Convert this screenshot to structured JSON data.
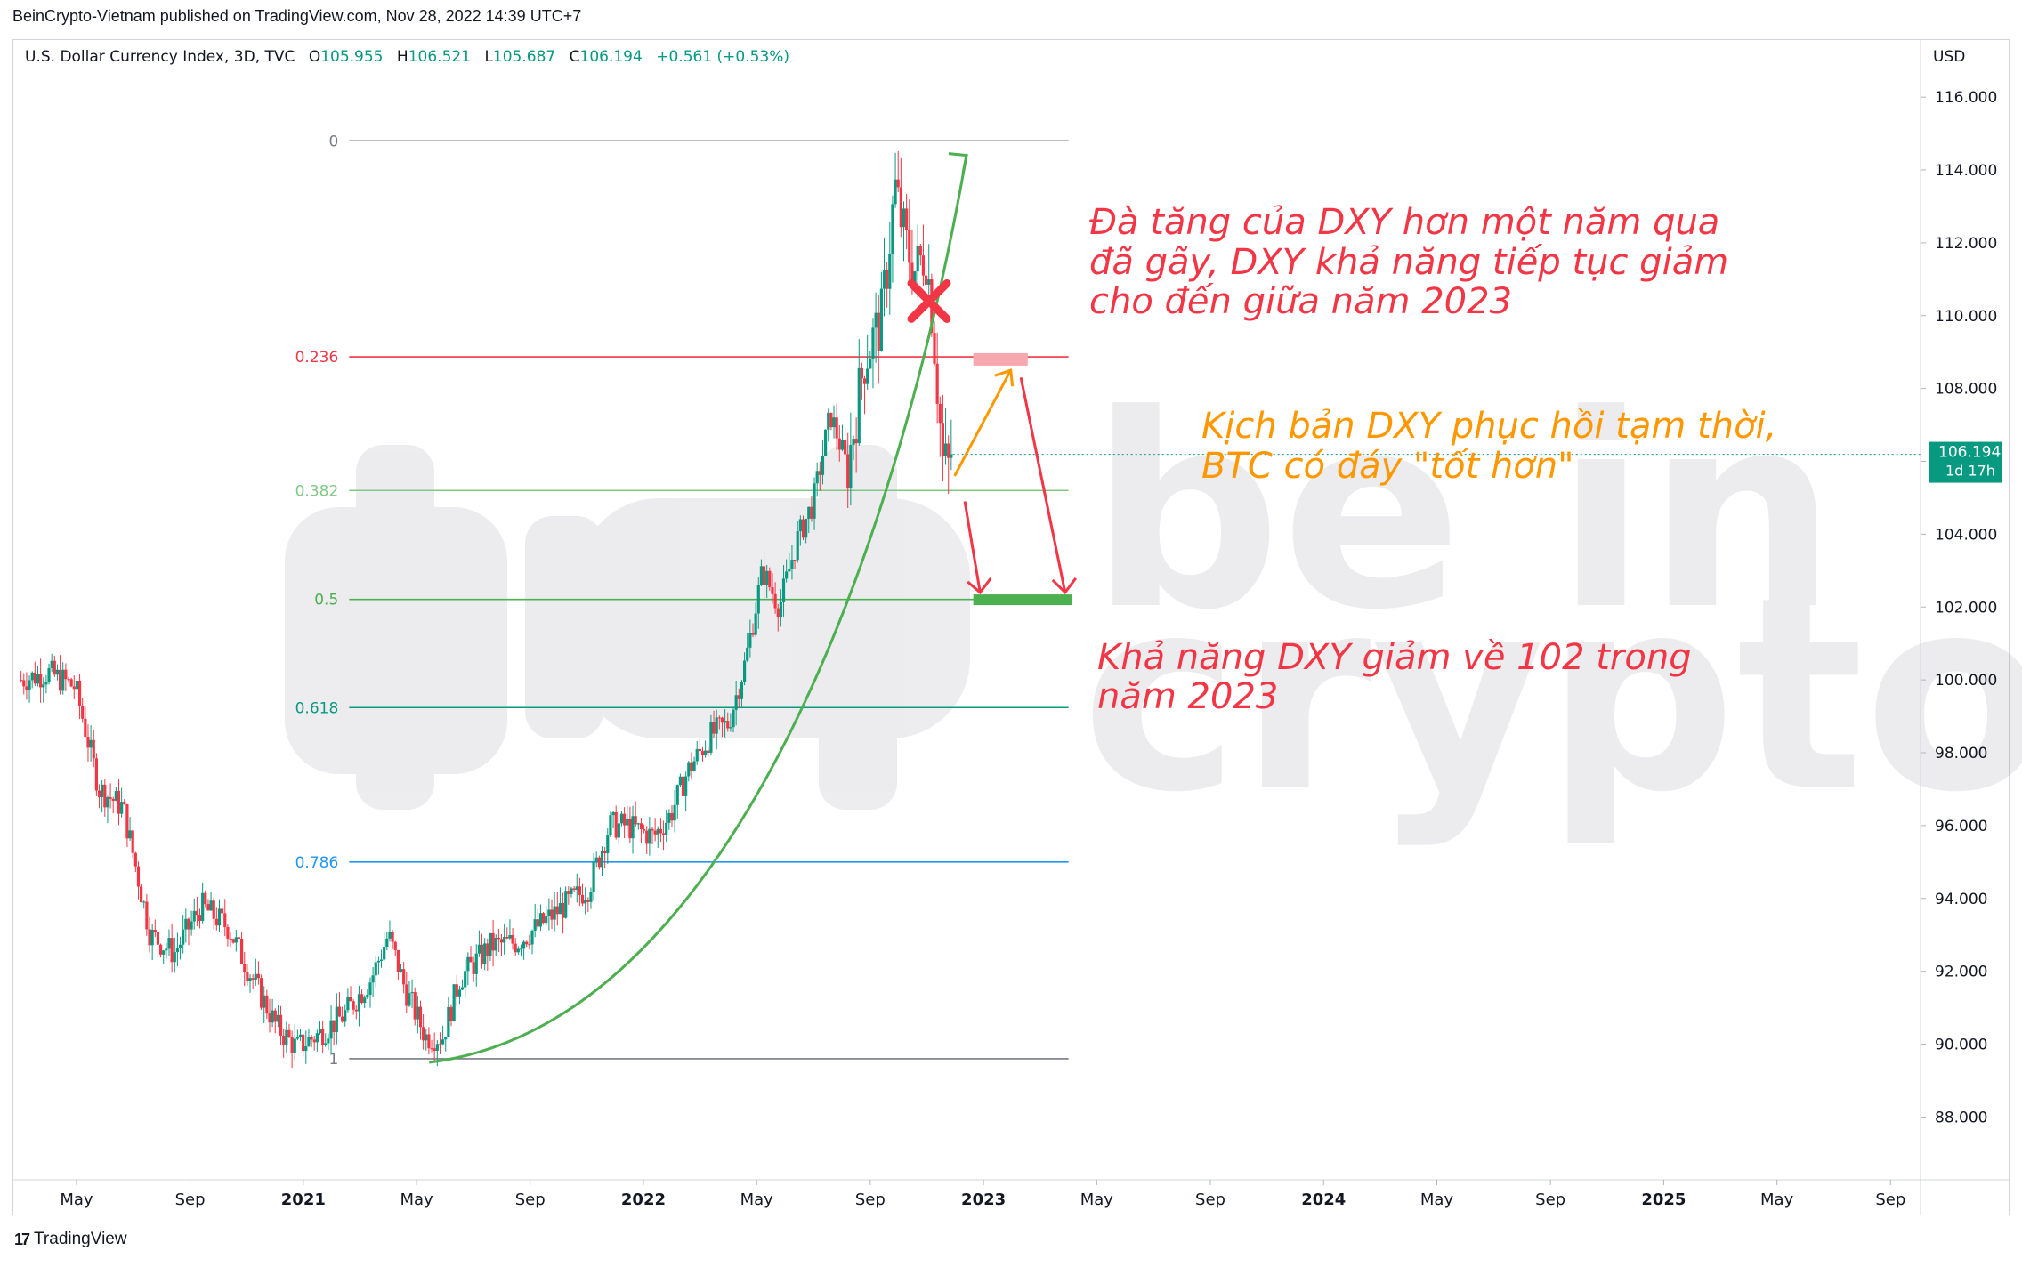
{
  "header": {
    "published": "BeinCrypto-Vietnam published on TradingView.com, Nov 28, 2022 14:39 UTC+7"
  },
  "legend": {
    "symbol": "U.S. Dollar Currency Index, 3D, TVC",
    "open_label": "O",
    "open": "105.955",
    "high_label": "H",
    "high": "106.521",
    "low_label": "L",
    "low": "105.687",
    "close_label": "C",
    "close": "106.194",
    "change": "+0.561 (+0.53%)"
  },
  "axis": {
    "currency": "USD",
    "price_label": "106.194",
    "countdown": "1d 17h"
  },
  "annotations": {
    "main": [
      "Đà tăng của DXY hơn một năm qua",
      "đã gãy, DXY khả năng tiếp tục giảm",
      "cho đến giữa năm 2023"
    ],
    "recovery": [
      "Kịch bản DXY phục hồi tạm thời,",
      "BTC có đáy \"tốt hơn\""
    ],
    "target": [
      "Khả năng DXY giảm về 102 trong",
      "năm 2023"
    ]
  },
  "watermark": {
    "line1": "be in",
    "line2": "crypto"
  },
  "footer": {
    "brand": "TradingView"
  },
  "colors": {
    "up": "#089981",
    "down": "#f23645",
    "red_text": "#f23645",
    "orange_text": "#ff9800",
    "green_curve": "#4caf50"
  },
  "chart_data": {
    "type": "candlestick",
    "title": "U.S. Dollar Currency Index, 3D, TVC",
    "xlabel": "",
    "ylabel": "USD",
    "ylim": [
      86.3,
      117.2
    ],
    "y_ticks": [
      88,
      90,
      92,
      94,
      96,
      98,
      100,
      102,
      104,
      106,
      108,
      110,
      112,
      114,
      116
    ],
    "y_tick_labels": [
      "88.000",
      "90.000",
      "92.000",
      "94.000",
      "96.000",
      "98.000",
      "100.000",
      "102.000",
      "104.000",
      "106.000",
      "108.000",
      "110.000",
      "112.000",
      "114.000",
      "116.000"
    ],
    "x_ticks": [
      {
        "t": 2020.333,
        "label": "May",
        "bold": false
      },
      {
        "t": 2020.667,
        "label": "Sep",
        "bold": false
      },
      {
        "t": 2021.0,
        "label": "2021",
        "bold": true
      },
      {
        "t": 2021.333,
        "label": "May",
        "bold": false
      },
      {
        "t": 2021.667,
        "label": "Sep",
        "bold": false
      },
      {
        "t": 2022.0,
        "label": "2022",
        "bold": true
      },
      {
        "t": 2022.333,
        "label": "May",
        "bold": false
      },
      {
        "t": 2022.667,
        "label": "Sep",
        "bold": false
      },
      {
        "t": 2023.0,
        "label": "2023",
        "bold": true
      },
      {
        "t": 2023.333,
        "label": "May",
        "bold": false
      },
      {
        "t": 2023.667,
        "label": "Sep",
        "bold": false
      },
      {
        "t": 2024.0,
        "label": "2024",
        "bold": true
      },
      {
        "t": 2024.333,
        "label": "May",
        "bold": false
      },
      {
        "t": 2024.667,
        "label": "Sep",
        "bold": false
      },
      {
        "t": 2025.0,
        "label": "2025",
        "bold": true
      },
      {
        "t": 2025.333,
        "label": "May",
        "bold": false
      },
      {
        "t": 2025.667,
        "label": "Sep",
        "bold": false
      }
    ],
    "close_path": [
      {
        "t": 2020.17,
        "v": 100.0
      },
      {
        "t": 2020.25,
        "v": 100.2
      },
      {
        "t": 2020.33,
        "v": 99.8
      },
      {
        "t": 2020.4,
        "v": 97.0
      },
      {
        "t": 2020.47,
        "v": 96.5
      },
      {
        "t": 2020.55,
        "v": 93.0
      },
      {
        "t": 2020.62,
        "v": 92.5
      },
      {
        "t": 2020.7,
        "v": 93.8
      },
      {
        "t": 2020.78,
        "v": 93.2
      },
      {
        "t": 2020.84,
        "v": 92.0
      },
      {
        "t": 2020.92,
        "v": 90.5
      },
      {
        "t": 2020.98,
        "v": 89.9
      },
      {
        "t": 2021.05,
        "v": 90.3
      },
      {
        "t": 2021.12,
        "v": 90.8
      },
      {
        "t": 2021.2,
        "v": 91.8
      },
      {
        "t": 2021.25,
        "v": 93.0
      },
      {
        "t": 2021.3,
        "v": 91.5
      },
      {
        "t": 2021.36,
        "v": 90.2
      },
      {
        "t": 2021.41,
        "v": 90.2
      },
      {
        "t": 2021.46,
        "v": 91.8
      },
      {
        "t": 2021.55,
        "v": 92.7
      },
      {
        "t": 2021.63,
        "v": 92.8
      },
      {
        "t": 2021.7,
        "v": 93.3
      },
      {
        "t": 2021.78,
        "v": 93.9
      },
      {
        "t": 2021.84,
        "v": 94.3
      },
      {
        "t": 2021.9,
        "v": 96.0
      },
      {
        "t": 2021.95,
        "v": 96.0
      },
      {
        "t": 2022.03,
        "v": 95.7
      },
      {
        "t": 2022.08,
        "v": 96.3
      },
      {
        "t": 2022.13,
        "v": 97.5
      },
      {
        "t": 2022.2,
        "v": 98.5
      },
      {
        "t": 2022.25,
        "v": 98.8
      },
      {
        "t": 2022.3,
        "v": 100.5
      },
      {
        "t": 2022.35,
        "v": 103.0
      },
      {
        "t": 2022.4,
        "v": 102.0
      },
      {
        "t": 2022.45,
        "v": 103.8
      },
      {
        "t": 2022.5,
        "v": 104.9
      },
      {
        "t": 2022.55,
        "v": 107.3
      },
      {
        "t": 2022.6,
        "v": 105.8
      },
      {
        "t": 2022.65,
        "v": 108.8
      },
      {
        "t": 2022.7,
        "v": 109.9
      },
      {
        "t": 2022.74,
        "v": 113.5
      },
      {
        "t": 2022.77,
        "v": 112.0
      },
      {
        "t": 2022.8,
        "v": 111.2
      },
      {
        "t": 2022.83,
        "v": 111.8
      },
      {
        "t": 2022.85,
        "v": 110.0
      },
      {
        "t": 2022.88,
        "v": 106.0
      },
      {
        "t": 2022.9,
        "v": 105.8
      },
      {
        "t": 2022.91,
        "v": 106.194
      }
    ],
    "fibonacci": [
      {
        "level": "0",
        "price": 114.8,
        "color": "#787b86"
      },
      {
        "level": "0.236",
        "price": 108.87,
        "color": "#f23645"
      },
      {
        "level": "0.382",
        "price": 105.2,
        "color": "#81c784"
      },
      {
        "level": "0.5",
        "price": 102.21,
        "color": "#4caf50"
      },
      {
        "level": "0.618",
        "price": 99.24,
        "color": "#089981"
      },
      {
        "level": "0.786",
        "price": 95.0,
        "color": "#2196f3"
      },
      {
        "level": "1",
        "price": 89.6,
        "color": "#787b86"
      }
    ],
    "fib_range_t": [
      2021.03,
      2023.25
    ],
    "last_price": 106.194,
    "drawings": {
      "trend_curve_start": {
        "t": 2021.37,
        "v": 89.5
      },
      "trend_curve_end": {
        "t": 2022.95,
        "v": 114.4
      },
      "break_marker": {
        "t": 2022.84,
        "v": 110.4
      },
      "recovery_box": {
        "t0": 2022.97,
        "t1": 2023.13,
        "v": 108.8
      },
      "target_box": {
        "t0": 2022.97,
        "t1": 2023.26,
        "v": 102.2
      }
    }
  }
}
